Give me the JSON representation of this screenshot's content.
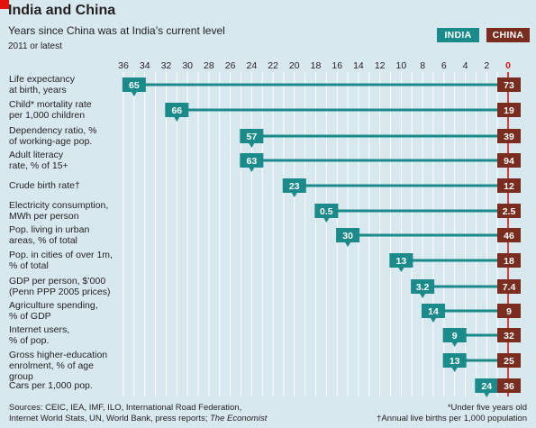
{
  "header": {
    "title": "India and China",
    "subtitle": "Years since China was at India’s current level",
    "note": "2011 or latest"
  },
  "legend": {
    "india": "INDIA",
    "china": "CHINA"
  },
  "footer": {
    "sources": "Sources: CEIC, IEA, IMF, ILO, International Road Federation,",
    "sources2_prefix": "Internet World Stats, UN, World Bank, press reports; ",
    "sources2_italic": "The Economist",
    "footnote1": "*Under five years old",
    "footnote2": "†Annual live births per 1,000 population"
  },
  "colors": {
    "background": "#d7e8ef",
    "india": "#1a8a8a",
    "china": "#7a2c1f",
    "grid": "#ffffff",
    "accent": "#e3120b"
  },
  "chart_data": {
    "type": "bar",
    "x_axis": {
      "ticks": [
        "36",
        "34",
        "32",
        "30",
        "28",
        "26",
        "24",
        "22",
        "20",
        "18",
        "16",
        "14",
        "12",
        "10",
        "8",
        "6",
        "4",
        "2",
        "0"
      ],
      "min": 0,
      "max": 36,
      "reversed": true
    },
    "rows": [
      {
        "label": "Life expectancy at birth, years",
        "lines": [
          "Life expectancy",
          "at birth, years"
        ],
        "years": 35,
        "india": "65",
        "china": "73"
      },
      {
        "label": "Child* mortality rate per 1,000 children",
        "lines": [
          "Child* mortality rate",
          "per 1,000 children"
        ],
        "years": 31,
        "india": "66",
        "china": "19"
      },
      {
        "label": "Dependency ratio, % of working-age pop.",
        "lines": [
          "Dependency ratio, %",
          "of working-age pop."
        ],
        "years": 24,
        "india": "57",
        "china": "39"
      },
      {
        "label": "Adult literacy rate, % of 15+",
        "lines": [
          "Adult literacy",
          "rate, % of 15+"
        ],
        "years": 24,
        "india": "63",
        "china": "94"
      },
      {
        "label": "Crude birth rate†",
        "lines": [
          "Crude birth rate†"
        ],
        "years": 20,
        "india": "23",
        "china": "12"
      },
      {
        "label": "Electricity consumption, MWh per person",
        "lines": [
          "Electricity consumption,",
          "MWh per person"
        ],
        "years": 17,
        "india": "0.5",
        "china": "2.5"
      },
      {
        "label": "Pop. living in urban areas, % of total",
        "lines": [
          "Pop. living in urban",
          "areas, % of total"
        ],
        "years": 15,
        "india": "30",
        "china": "46"
      },
      {
        "label": "Pop. in cities of over 1m, % of total",
        "lines": [
          "Pop. in cities of over 1m,",
          "% of total"
        ],
        "years": 10,
        "india": "13",
        "china": "18"
      },
      {
        "label": "GDP per person, $’000 (Penn PPP 2005 prices)",
        "lines": [
          "GDP per person, $’000",
          "(Penn PPP 2005 prices)"
        ],
        "years": 8,
        "india": "3.2",
        "china": "7.4"
      },
      {
        "label": "Agriculture spending, % of GDP",
        "lines": [
          "Agriculture spending,",
          "% of GDP"
        ],
        "years": 7,
        "india": "14",
        "china": "9"
      },
      {
        "label": "Internet users, % of pop.",
        "lines": [
          "Internet users,",
          "% of pop."
        ],
        "years": 5,
        "india": "9",
        "china": "32"
      },
      {
        "label": "Gross higher-education enrolment, % of age group",
        "lines": [
          "Gross higher-education",
          "enrolment, % of age group"
        ],
        "years": 5,
        "india": "13",
        "china": "25"
      },
      {
        "label": "Cars per 1,000 pop.",
        "lines": [
          "Cars per 1,000 pop."
        ],
        "years": 2,
        "india": "24",
        "china": "36"
      }
    ]
  }
}
